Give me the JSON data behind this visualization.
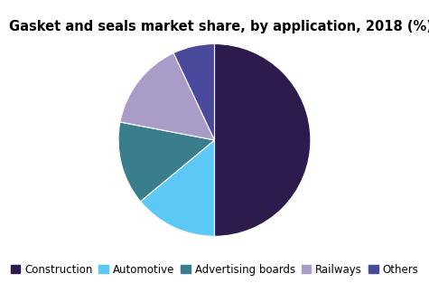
{
  "title": "Gasket and seals market share, by application, 2018 (%)",
  "labels": [
    "Construction",
    "Automotive",
    "Advertising boards",
    "Railways",
    "Others"
  ],
  "values": [
    50,
    14,
    14,
    15,
    7
  ],
  "colors": [
    "#2d1b4e",
    "#5bc8f5",
    "#3a7d8c",
    "#a99cc8",
    "#4a4a9c"
  ],
  "startangle": 90,
  "legend_fontsize": 8.5,
  "title_fontsize": 10.5,
  "background_color": "#ffffff"
}
